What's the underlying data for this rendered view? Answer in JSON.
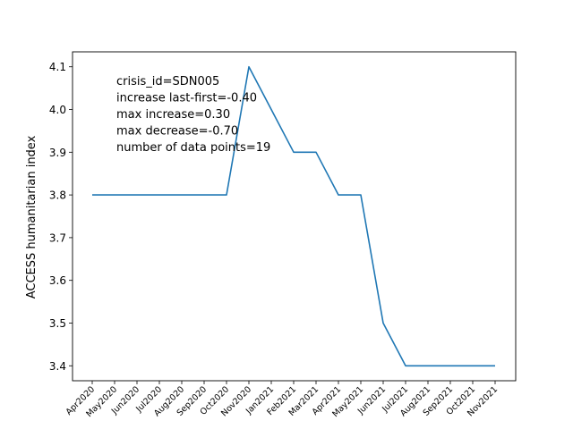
{
  "chart_data": {
    "type": "line",
    "title": "",
    "xlabel": "",
    "ylabel": "ACCESS humanitarian index",
    "categories": [
      "Apr2020",
      "May2020",
      "Jun2020",
      "Jul2020",
      "Aug2020",
      "Sep2020",
      "Oct2020",
      "Nov2020",
      "Jan2021",
      "Feb2021",
      "Mar2021",
      "Apr2021",
      "May2021",
      "Jun2021",
      "Jul2021",
      "Aug2021",
      "Sep2021",
      "Oct2021",
      "Nov2021"
    ],
    "series": [
      {
        "values": [
          3.8,
          3.8,
          3.8,
          3.8,
          3.8,
          3.8,
          3.8,
          4.1,
          4.0,
          3.9,
          3.9,
          3.8,
          3.8,
          3.5,
          3.4,
          3.4,
          3.4,
          3.4,
          3.4
        ],
        "color": "#1f77b4"
      }
    ],
    "ylim": [
      3.365,
      4.135
    ],
    "yticks": [
      "3.4",
      "3.5",
      "3.6",
      "3.7",
      "3.8",
      "3.9",
      "4.0",
      "4.1"
    ],
    "grid": false,
    "annotation_lines": [
      "crisis_id=SDN005",
      "increase last-first=-0.40",
      "max increase=0.30",
      "max decrease=-0.70",
      "number of data points=19"
    ]
  }
}
